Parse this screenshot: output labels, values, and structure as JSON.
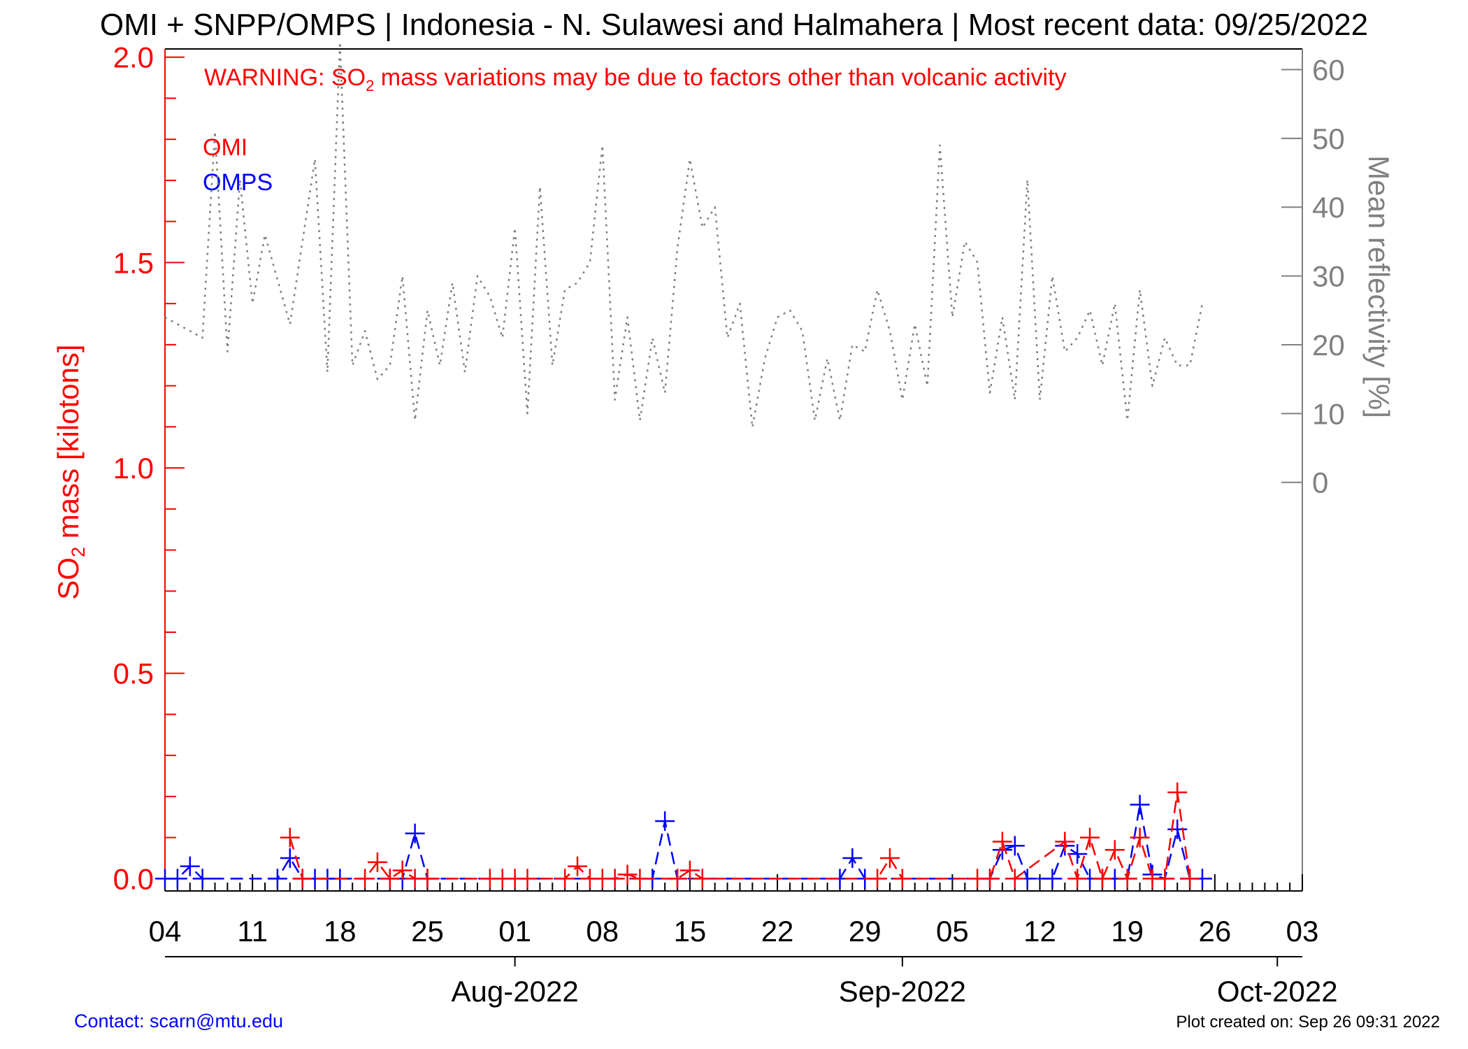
{
  "page": {
    "title": "OMI + SNPP/OMPS | Indonesia - N. Sulawesi and Halmahera | Most recent data: 09/25/2022",
    "warning_prefix": "WARNING: SO",
    "warning_sub": "2",
    "warning_suffix": " mass variations may be due to factors other than volcanic activity",
    "contact": "Contact: scarn@mtu.edu",
    "created": "Plot created on: Sep 26 09:31 2022",
    "colors": {
      "omi": "#ff0000",
      "omps": "#0000ff",
      "reflectivity": "#808080",
      "axis": "#000000",
      "contact": "#0000ff"
    }
  },
  "chart_data": {
    "type": "line",
    "x_axis": {
      "range": [
        "2022-07-04",
        "2022-10-03"
      ],
      "tick_dates": [
        "2022-07-04",
        "2022-07-11",
        "2022-07-18",
        "2022-07-25",
        "2022-08-01",
        "2022-08-08",
        "2022-08-15",
        "2022-08-22",
        "2022-08-29",
        "2022-09-05",
        "2022-09-12",
        "2022-09-19",
        "2022-09-26",
        "2022-10-03"
      ],
      "tick_labels": [
        "04",
        "11",
        "18",
        "25",
        "01",
        "08",
        "15",
        "22",
        "29",
        "05",
        "12",
        "19",
        "26",
        "03"
      ],
      "month_labels": [
        {
          "date": "2022-08-01",
          "label": "Aug-2022"
        },
        {
          "date": "2022-09-01",
          "label": "Sep-2022"
        },
        {
          "date": "2022-10-01",
          "label": "Oct-2022"
        }
      ]
    },
    "y_left": {
      "label_prefix": "SO",
      "label_sub": "2",
      "label_suffix": " mass [kilotons]",
      "range": [
        -0.03,
        2.02
      ],
      "ticks": [
        0.0,
        0.5,
        1.0,
        1.5,
        2.0
      ],
      "tick_labels": [
        "0.0",
        "0.5",
        "1.0",
        "1.5",
        "2.0"
      ]
    },
    "y_right": {
      "label": "Mean reflectivity [%]",
      "range": [
        -59.4,
        63
      ],
      "ticks": [
        0,
        10,
        20,
        30,
        40,
        50,
        60
      ],
      "tick_labels": [
        "0",
        "10",
        "20",
        "30",
        "40",
        "50",
        "60"
      ]
    },
    "legend": [
      {
        "name": "OMI",
        "color": "#ff0000"
      },
      {
        "name": "OMPS",
        "color": "#0000ff"
      }
    ],
    "legend_position": "top-left",
    "series": [
      {
        "name": "OMI",
        "style": "dashed-plus",
        "points": [
          [
            "2022-07-14",
            0.1
          ],
          [
            "2022-07-15",
            0.0
          ],
          [
            "2022-07-20",
            0.0
          ],
          [
            "2022-07-21",
            0.04
          ],
          [
            "2022-07-22",
            0.0
          ],
          [
            "2022-07-23",
            0.02
          ],
          [
            "2022-07-24",
            0.0
          ],
          [
            "2022-07-25",
            0.0
          ],
          [
            "2022-07-30",
            0.0
          ],
          [
            "2022-07-31",
            0.0
          ],
          [
            "2022-08-01",
            0.0
          ],
          [
            "2022-08-02",
            0.0
          ],
          [
            "2022-08-05",
            0.0
          ],
          [
            "2022-08-06",
            0.03
          ],
          [
            "2022-08-07",
            0.0
          ],
          [
            "2022-08-08",
            0.0
          ],
          [
            "2022-08-09",
            0.0
          ],
          [
            "2022-08-10",
            0.01
          ],
          [
            "2022-08-11",
            0.0
          ],
          [
            "2022-08-14",
            0.0
          ],
          [
            "2022-08-15",
            0.02
          ],
          [
            "2022-08-16",
            0.0
          ],
          [
            "2022-08-30",
            0.0
          ],
          [
            "2022-08-31",
            0.05
          ],
          [
            "2022-09-01",
            0.0
          ],
          [
            "2022-09-07",
            0.0
          ],
          [
            "2022-09-08",
            0.0
          ],
          [
            "2022-09-09",
            0.09
          ],
          [
            "2022-09-10",
            0.0
          ],
          [
            "2022-09-14",
            0.09
          ],
          [
            "2022-09-15",
            0.0
          ],
          [
            "2022-09-16",
            0.1
          ],
          [
            "2022-09-17",
            0.0
          ],
          [
            "2022-09-18",
            0.07
          ],
          [
            "2022-09-19",
            0.0
          ],
          [
            "2022-09-20",
            0.1
          ],
          [
            "2022-09-21",
            0.0
          ],
          [
            "2022-09-22",
            0.0
          ],
          [
            "2022-09-23",
            0.21
          ],
          [
            "2022-09-24",
            0.0
          ]
        ]
      },
      {
        "name": "OMPS",
        "style": "dashed-plus",
        "points": [
          [
            "2022-07-04",
            0.0
          ],
          [
            "2022-07-05",
            0.0
          ],
          [
            "2022-07-06",
            0.03
          ],
          [
            "2022-07-07",
            0.0
          ],
          [
            "2022-07-13",
            0.0
          ],
          [
            "2022-07-14",
            0.05
          ],
          [
            "2022-07-15",
            0.0
          ],
          [
            "2022-07-16",
            0.0
          ],
          [
            "2022-07-17",
            0.0
          ],
          [
            "2022-07-18",
            0.0
          ],
          [
            "2022-07-22",
            0.0
          ],
          [
            "2022-07-23",
            0.0
          ],
          [
            "2022-07-24",
            0.11
          ],
          [
            "2022-07-25",
            0.0
          ],
          [
            "2022-08-12",
            0.0
          ],
          [
            "2022-08-13",
            0.14
          ],
          [
            "2022-08-14",
            0.0
          ],
          [
            "2022-08-27",
            0.0
          ],
          [
            "2022-08-28",
            0.05
          ],
          [
            "2022-08-29",
            0.0
          ],
          [
            "2022-09-08",
            0.0
          ],
          [
            "2022-09-09",
            0.07
          ],
          [
            "2022-09-10",
            0.08
          ],
          [
            "2022-09-11",
            0.0
          ],
          [
            "2022-09-13",
            0.0
          ],
          [
            "2022-09-14",
            0.08
          ],
          [
            "2022-09-15",
            0.06
          ],
          [
            "2022-09-16",
            0.0
          ],
          [
            "2022-09-17",
            0.0
          ],
          [
            "2022-09-18",
            0.0
          ],
          [
            "2022-09-19",
            0.0
          ],
          [
            "2022-09-20",
            0.18
          ],
          [
            "2022-09-21",
            0.01
          ],
          [
            "2022-09-22",
            0.0
          ],
          [
            "2022-09-23",
            0.12
          ],
          [
            "2022-09-24",
            0.0
          ],
          [
            "2022-09-25",
            0.0
          ]
        ]
      },
      {
        "name": "Mean reflectivity",
        "axis": "right",
        "style": "dotted",
        "points": [
          [
            "2022-07-04",
            24
          ],
          [
            "2022-07-07",
            21
          ],
          [
            "2022-07-08",
            51
          ],
          [
            "2022-07-09",
            19
          ],
          [
            "2022-07-10",
            44
          ],
          [
            "2022-07-11",
            26
          ],
          [
            "2022-07-12",
            36
          ],
          [
            "2022-07-14",
            23
          ],
          [
            "2022-07-16",
            47
          ],
          [
            "2022-07-17",
            16
          ],
          [
            "2022-07-18",
            64
          ],
          [
            "2022-07-19",
            17
          ],
          [
            "2022-07-20",
            22
          ],
          [
            "2022-07-21",
            15
          ],
          [
            "2022-07-22",
            17
          ],
          [
            "2022-07-23",
            30
          ],
          [
            "2022-07-24",
            9
          ],
          [
            "2022-07-25",
            25
          ],
          [
            "2022-07-26",
            17
          ],
          [
            "2022-07-27",
            29
          ],
          [
            "2022-07-28",
            16
          ],
          [
            "2022-07-29",
            30
          ],
          [
            "2022-07-30",
            27
          ],
          [
            "2022-07-31",
            21
          ],
          [
            "2022-08-01",
            37
          ],
          [
            "2022-08-02",
            10
          ],
          [
            "2022-08-03",
            43
          ],
          [
            "2022-08-04",
            17
          ],
          [
            "2022-08-05",
            28
          ],
          [
            "2022-08-06",
            29
          ],
          [
            "2022-08-07",
            32
          ],
          [
            "2022-08-08",
            49
          ],
          [
            "2022-08-09",
            12
          ],
          [
            "2022-08-10",
            24
          ],
          [
            "2022-08-11",
            9
          ],
          [
            "2022-08-12",
            21
          ],
          [
            "2022-08-13",
            13
          ],
          [
            "2022-08-14",
            34
          ],
          [
            "2022-08-15",
            47
          ],
          [
            "2022-08-16",
            37
          ],
          [
            "2022-08-17",
            40
          ],
          [
            "2022-08-18",
            21
          ],
          [
            "2022-08-19",
            26
          ],
          [
            "2022-08-20",
            8
          ],
          [
            "2022-08-21",
            18
          ],
          [
            "2022-08-22",
            24
          ],
          [
            "2022-08-23",
            25
          ],
          [
            "2022-08-24",
            22
          ],
          [
            "2022-08-25",
            9
          ],
          [
            "2022-08-26",
            18
          ],
          [
            "2022-08-27",
            9
          ],
          [
            "2022-08-28",
            20
          ],
          [
            "2022-08-29",
            19
          ],
          [
            "2022-08-30",
            28
          ],
          [
            "2022-08-31",
            22
          ],
          [
            "2022-09-01",
            12
          ],
          [
            "2022-09-02",
            23
          ],
          [
            "2022-09-03",
            14
          ],
          [
            "2022-09-04",
            49
          ],
          [
            "2022-09-05",
            24
          ],
          [
            "2022-09-06",
            35
          ],
          [
            "2022-09-07",
            32
          ],
          [
            "2022-09-08",
            13
          ],
          [
            "2022-09-09",
            24
          ],
          [
            "2022-09-10",
            12
          ],
          [
            "2022-09-11",
            44
          ],
          [
            "2022-09-12",
            12
          ],
          [
            "2022-09-13",
            30
          ],
          [
            "2022-09-14",
            19
          ],
          [
            "2022-09-15",
            21
          ],
          [
            "2022-09-16",
            25
          ],
          [
            "2022-09-17",
            17
          ],
          [
            "2022-09-18",
            26
          ],
          [
            "2022-09-19",
            9
          ],
          [
            "2022-09-20",
            28
          ],
          [
            "2022-09-21",
            14
          ],
          [
            "2022-09-22",
            21
          ],
          [
            "2022-09-23",
            17
          ],
          [
            "2022-09-24",
            17
          ],
          [
            "2022-09-25",
            26
          ]
        ]
      }
    ]
  }
}
